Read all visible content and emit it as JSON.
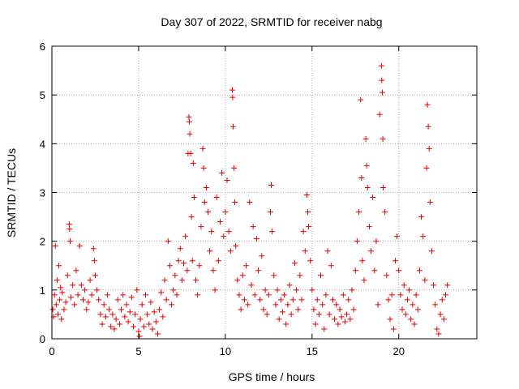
{
  "chart_data": {
    "type": "scatter",
    "title": "Day 307 of 2022, SRMTID for receiver nabg",
    "xlabel": "GPS time / hours",
    "ylabel": "SRMTID / TECUs",
    "xlim": [
      0,
      24.5
    ],
    "ylim": [
      0,
      6
    ],
    "xticks": [
      0,
      5,
      10,
      15,
      20
    ],
    "yticks": [
      0,
      1,
      2,
      3,
      4,
      5,
      6
    ],
    "grid": true,
    "marker": "+",
    "marker_color": "#e00000",
    "series": [
      {
        "name": "SRMTID",
        "points": [
          [
            0.05,
            0.6
          ],
          [
            0.1,
            0.45
          ],
          [
            0.15,
            0.9
          ],
          [
            0.2,
            1.9
          ],
          [
            0.25,
            0.7
          ],
          [
            0.3,
            1.2
          ],
          [
            0.35,
            0.5
          ],
          [
            0.4,
            1.5
          ],
          [
            0.45,
            0.8
          ],
          [
            0.5,
            1.05
          ],
          [
            0.55,
            0.4
          ],
          [
            0.6,
            0.95
          ],
          [
            0.7,
            0.6
          ],
          [
            0.8,
            0.75
          ],
          [
            0.9,
            1.3
          ],
          [
            1.0,
            2.35
          ],
          [
            1.02,
            2.25
          ],
          [
            1.05,
            2.0
          ],
          [
            1.1,
            0.85
          ],
          [
            1.2,
            1.1
          ],
          [
            1.3,
            0.7
          ],
          [
            1.4,
            1.4
          ],
          [
            1.5,
            0.9
          ],
          [
            1.6,
            1.9
          ],
          [
            1.7,
            1.1
          ],
          [
            1.8,
            0.8
          ],
          [
            1.9,
            1.0
          ],
          [
            2.0,
            0.6
          ],
          [
            2.1,
            0.75
          ],
          [
            2.2,
            1.2
          ],
          [
            2.3,
            0.9
          ],
          [
            2.4,
            1.85
          ],
          [
            2.45,
            1.6
          ],
          [
            2.5,
            1.3
          ],
          [
            2.6,
            1.0
          ],
          [
            2.7,
            0.8
          ],
          [
            2.8,
            0.5
          ],
          [
            2.9,
            0.3
          ],
          [
            3.0,
            0.7
          ],
          [
            3.1,
            0.45
          ],
          [
            3.2,
            0.9
          ],
          [
            3.3,
            0.6
          ],
          [
            3.4,
            0.25
          ],
          [
            3.5,
            0.5
          ],
          [
            3.6,
            0.2
          ],
          [
            3.7,
            0.4
          ],
          [
            3.8,
            0.8
          ],
          [
            3.9,
            0.3
          ],
          [
            4.0,
            0.6
          ],
          [
            4.1,
            0.9
          ],
          [
            4.2,
            0.45
          ],
          [
            4.3,
            0.7
          ],
          [
            4.4,
            0.35
          ],
          [
            4.5,
            0.55
          ],
          [
            4.6,
            0.85
          ],
          [
            4.7,
            0.25
          ],
          [
            4.8,
            0.5
          ],
          [
            4.9,
            1.0
          ],
          [
            5.0,
            0.15
          ],
          [
            5.05,
            0.05
          ],
          [
            5.1,
            0.4
          ],
          [
            5.2,
            0.7
          ],
          [
            5.3,
            0.25
          ],
          [
            5.4,
            0.9
          ],
          [
            5.5,
            0.5
          ],
          [
            5.6,
            0.3
          ],
          [
            5.7,
            0.75
          ],
          [
            5.8,
            0.2
          ],
          [
            5.9,
            0.55
          ],
          [
            6.0,
            0.35
          ],
          [
            6.1,
            0.1
          ],
          [
            6.2,
            0.6
          ],
          [
            6.3,
            0.95
          ],
          [
            6.4,
            0.45
          ],
          [
            6.5,
            1.2
          ],
          [
            6.6,
            0.8
          ],
          [
            6.7,
            2.0
          ],
          [
            6.8,
            1.5
          ],
          [
            6.9,
            0.7
          ],
          [
            7.0,
            1.0
          ],
          [
            7.1,
            1.3
          ],
          [
            7.2,
            0.9
          ],
          [
            7.3,
            1.6
          ],
          [
            7.4,
            1.85
          ],
          [
            7.5,
            1.2
          ],
          [
            7.6,
            1.55
          ],
          [
            7.7,
            2.1
          ],
          [
            7.8,
            1.4
          ],
          [
            7.85,
            3.8
          ],
          [
            7.9,
            4.55
          ],
          [
            7.92,
            4.45
          ],
          [
            7.95,
            4.2
          ],
          [
            8.0,
            3.8
          ],
          [
            8.05,
            2.5
          ],
          [
            8.1,
            1.6
          ],
          [
            8.15,
            3.6
          ],
          [
            8.2,
            2.9
          ],
          [
            8.3,
            1.2
          ],
          [
            8.4,
            0.9
          ],
          [
            8.5,
            1.5
          ],
          [
            8.6,
            2.3
          ],
          [
            8.7,
            3.9
          ],
          [
            8.75,
            3.5
          ],
          [
            8.8,
            2.8
          ],
          [
            8.9,
            3.1
          ],
          [
            9.0,
            2.6
          ],
          [
            9.1,
            1.8
          ],
          [
            9.2,
            2.2
          ],
          [
            9.3,
            1.4
          ],
          [
            9.4,
            1.0
          ],
          [
            9.5,
            2.9
          ],
          [
            9.6,
            1.6
          ],
          [
            9.7,
            2.4
          ],
          [
            9.8,
            3.4
          ],
          [
            9.9,
            2.1
          ],
          [
            10.0,
            2.6
          ],
          [
            10.1,
            3.25
          ],
          [
            10.2,
            2.2
          ],
          [
            10.3,
            1.8
          ],
          [
            10.4,
            5.1
          ],
          [
            10.42,
            4.95
          ],
          [
            10.45,
            4.35
          ],
          [
            10.5,
            3.5
          ],
          [
            10.55,
            2.8
          ],
          [
            10.6,
            1.9
          ],
          [
            10.7,
            1.2
          ],
          [
            10.8,
            0.9
          ],
          [
            10.9,
            0.6
          ],
          [
            11.0,
            1.3
          ],
          [
            11.1,
            0.8
          ],
          [
            11.2,
            1.5
          ],
          [
            11.3,
            0.7
          ],
          [
            11.4,
            2.8
          ],
          [
            11.5,
            1.1
          ],
          [
            11.6,
            2.3
          ],
          [
            11.7,
            0.9
          ],
          [
            11.8,
            2.05
          ],
          [
            11.9,
            1.4
          ],
          [
            12.0,
            0.8
          ],
          [
            12.1,
            1.7
          ],
          [
            12.2,
            0.6
          ],
          [
            12.3,
            1.0
          ],
          [
            12.4,
            0.5
          ],
          [
            12.5,
            0.9
          ],
          [
            12.6,
            2.6
          ],
          [
            12.65,
            3.15
          ],
          [
            12.7,
            2.2
          ],
          [
            12.8,
            1.3
          ],
          [
            12.9,
            0.7
          ],
          [
            13.0,
            1.0
          ],
          [
            13.1,
            0.4
          ],
          [
            13.2,
            0.8
          ],
          [
            13.3,
            0.55
          ],
          [
            13.4,
            0.9
          ],
          [
            13.5,
            0.3
          ],
          [
            13.6,
            0.7
          ],
          [
            13.7,
            1.1
          ],
          [
            13.8,
            0.5
          ],
          [
            13.9,
            0.8
          ],
          [
            14.0,
            1.55
          ],
          [
            14.1,
            1.0
          ],
          [
            14.2,
            0.6
          ],
          [
            14.3,
            1.3
          ],
          [
            14.4,
            0.8
          ],
          [
            14.5,
            2.2
          ],
          [
            14.6,
            1.8
          ],
          [
            14.7,
            2.95
          ],
          [
            14.75,
            2.6
          ],
          [
            14.8,
            2.3
          ],
          [
            14.9,
            1.6
          ],
          [
            15.0,
            1.0
          ],
          [
            15.1,
            0.6
          ],
          [
            15.2,
            0.3
          ],
          [
            15.3,
            0.8
          ],
          [
            15.4,
            0.5
          ],
          [
            15.5,
            1.3
          ],
          [
            15.6,
            0.7
          ],
          [
            15.7,
            0.2
          ],
          [
            15.8,
            0.9
          ],
          [
            15.9,
            1.8
          ],
          [
            16.0,
            0.5
          ],
          [
            16.1,
            1.5
          ],
          [
            16.2,
            0.8
          ],
          [
            16.3,
            0.4
          ],
          [
            16.4,
            0.7
          ],
          [
            16.5,
            0.3
          ],
          [
            16.6,
            0.6
          ],
          [
            16.7,
            0.45
          ],
          [
            16.8,
            0.9
          ],
          [
            16.9,
            0.35
          ],
          [
            17.0,
            0.5
          ],
          [
            17.1,
            0.8
          ],
          [
            17.2,
            0.4
          ],
          [
            17.3,
            1.0
          ],
          [
            17.4,
            0.6
          ],
          [
            17.5,
            1.4
          ],
          [
            17.6,
            2.0
          ],
          [
            17.7,
            2.6
          ],
          [
            17.8,
            4.9
          ],
          [
            17.85,
            3.3
          ],
          [
            17.9,
            1.6
          ],
          [
            18.0,
            1.2
          ],
          [
            18.1,
            4.1
          ],
          [
            18.15,
            3.55
          ],
          [
            18.2,
            3.1
          ],
          [
            18.3,
            2.3
          ],
          [
            18.4,
            1.8
          ],
          [
            18.5,
            2.9
          ],
          [
            18.6,
            1.4
          ],
          [
            18.7,
            2.0
          ],
          [
            18.8,
            0.7
          ],
          [
            18.9,
            4.6
          ],
          [
            19.0,
            5.6
          ],
          [
            19.02,
            5.3
          ],
          [
            19.05,
            5.05
          ],
          [
            19.08,
            4.1
          ],
          [
            19.1,
            3.1
          ],
          [
            19.2,
            2.6
          ],
          [
            19.3,
            1.3
          ],
          [
            19.4,
            0.8
          ],
          [
            19.5,
            0.4
          ],
          [
            19.6,
            0.9
          ],
          [
            19.7,
            0.2
          ],
          [
            19.8,
            1.6
          ],
          [
            19.9,
            2.1
          ],
          [
            20.0,
            1.4
          ],
          [
            20.1,
            0.9
          ],
          [
            20.2,
            0.6
          ],
          [
            20.3,
            1.1
          ],
          [
            20.4,
            0.5
          ],
          [
            20.5,
            0.8
          ],
          [
            20.6,
            1.0
          ],
          [
            20.7,
            0.4
          ],
          [
            20.8,
            0.7
          ],
          [
            20.9,
            0.3
          ],
          [
            21.0,
            0.9
          ],
          [
            21.1,
            0.6
          ],
          [
            21.2,
            1.4
          ],
          [
            21.3,
            2.5
          ],
          [
            21.4,
            2.1
          ],
          [
            21.5,
            1.2
          ],
          [
            21.6,
            3.5
          ],
          [
            21.65,
            4.8
          ],
          [
            21.7,
            4.35
          ],
          [
            21.75,
            3.9
          ],
          [
            21.8,
            2.8
          ],
          [
            21.9,
            1.8
          ],
          [
            22.0,
            1.1
          ],
          [
            22.1,
            0.7
          ],
          [
            22.2,
            0.2
          ],
          [
            22.3,
            0.1
          ],
          [
            22.4,
            0.5
          ],
          [
            22.5,
            0.8
          ],
          [
            22.6,
            0.4
          ],
          [
            22.7,
            0.9
          ],
          [
            22.8,
            1.1
          ]
        ]
      }
    ]
  }
}
